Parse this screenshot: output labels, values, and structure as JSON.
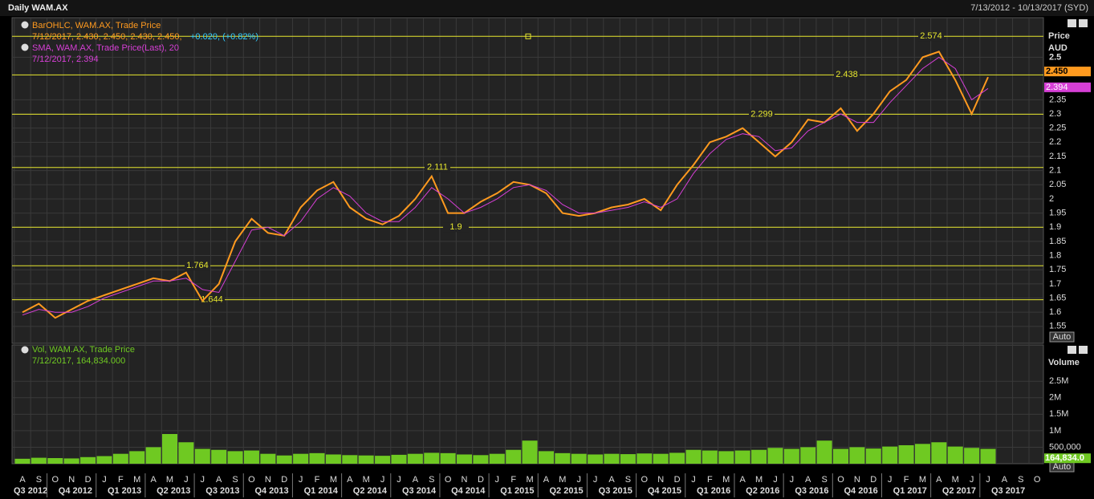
{
  "header": {
    "title": "Daily WAM.AX",
    "range": "7/13/2012 - 10/13/2017 (SYD)"
  },
  "x_axis": {
    "months": [
      "A",
      "S",
      "O",
      "N",
      "D",
      "J",
      "F",
      "M",
      "A",
      "M",
      "J",
      "J",
      "A",
      "S",
      "O",
      "N",
      "D",
      "J",
      "F",
      "M",
      "A",
      "M",
      "J",
      "J",
      "A",
      "S",
      "O",
      "N",
      "D",
      "J",
      "F",
      "M",
      "A",
      "M",
      "J",
      "J",
      "A",
      "S",
      "O",
      "N",
      "D",
      "J",
      "F",
      "M",
      "A",
      "M",
      "J",
      "J",
      "A",
      "S",
      "O",
      "N",
      "D",
      "J",
      "F",
      "M",
      "A",
      "M",
      "J",
      "J",
      "A",
      "S",
      "O"
    ],
    "quarters": [
      "Q3 2012",
      "Q4 2012",
      "Q1 2013",
      "Q2 2013",
      "Q3 2013",
      "Q4 2013",
      "Q1 2014",
      "Q2 2014",
      "Q3 2014",
      "Q4 2014",
      "Q1 2015",
      "Q2 2015",
      "Q3 2015",
      "Q4 2015",
      "Q1 2016",
      "Q2 2016",
      "Q3 2016",
      "Q4 2016",
      "Q1 2017",
      "Q2 2017",
      "Q3 2017"
    ]
  },
  "chart_data": [
    {
      "type": "line",
      "y_axis_title": [
        "Price",
        "AUD"
      ],
      "scale_button": "Auto",
      "series": [
        {
          "name": "BarOHLC, WAM.AX, Trade Price",
          "color": "#ff9a1f",
          "values": [
            1.6,
            1.63,
            1.58,
            1.61,
            1.64,
            1.66,
            1.68,
            1.7,
            1.72,
            1.71,
            1.74,
            1.64,
            1.7,
            1.85,
            1.93,
            1.88,
            1.87,
            1.97,
            2.03,
            2.06,
            1.97,
            1.93,
            1.91,
            1.94,
            2.0,
            2.08,
            1.95,
            1.95,
            1.99,
            2.02,
            2.06,
            2.05,
            2.02,
            1.95,
            1.94,
            1.95,
            1.97,
            1.98,
            2.0,
            1.96,
            2.05,
            2.12,
            2.2,
            2.22,
            2.25,
            2.2,
            2.15,
            2.2,
            2.28,
            2.27,
            2.32,
            2.24,
            2.3,
            2.38,
            2.42,
            2.5,
            2.52,
            2.42,
            2.3,
            2.43,
            null,
            null,
            null
          ]
        },
        {
          "name": "SMA, WAM.AX, Trade Price(Last), 20",
          "color": "#d63fd6",
          "values": [
            1.59,
            1.61,
            1.6,
            1.6,
            1.62,
            1.65,
            1.67,
            1.69,
            1.71,
            1.71,
            1.72,
            1.68,
            1.67,
            1.78,
            1.89,
            1.9,
            1.87,
            1.92,
            2.0,
            2.04,
            2.01,
            1.95,
            1.92,
            1.92,
            1.97,
            2.04,
            2.0,
            1.95,
            1.97,
            2.0,
            2.04,
            2.05,
            2.03,
            1.98,
            1.95,
            1.95,
            1.96,
            1.97,
            1.99,
            1.97,
            2.0,
            2.09,
            2.16,
            2.21,
            2.23,
            2.22,
            2.17,
            2.18,
            2.24,
            2.27,
            2.3,
            2.27,
            2.27,
            2.34,
            2.4,
            2.46,
            2.5,
            2.46,
            2.35,
            2.39,
            null,
            null,
            null
          ]
        }
      ],
      "legend_details": [
        "7/12/2017, 2.430, 2.450, 2.430, 2.450,",
        "+0.020, (+0.82%)",
        "7/12/2017, 2.394"
      ],
      "last_values": [
        {
          "value": 2.45,
          "label": "2.450"
        },
        {
          "value": 2.394,
          "label": "2.394"
        }
      ],
      "levels": [
        2.574,
        2.438,
        2.299,
        2.111,
        1.9,
        1.764,
        1.644
      ],
      "ylim": [
        1.49,
        2.64
      ],
      "yticks": [
        1.55,
        1.6,
        1.65,
        1.7,
        1.75,
        1.8,
        1.85,
        1.9,
        1.95,
        2,
        2.05,
        2.1,
        2.15,
        2.2,
        2.25,
        2.3,
        2.35,
        2.5
      ]
    },
    {
      "type": "bar",
      "y_axis_title": "Volume",
      "scale_button": "Auto",
      "series": [
        {
          "name": "Vol, WAM.AX, Trade Price",
          "color": "#6fc922",
          "values": [
            150000,
            180000,
            170000,
            160000,
            200000,
            230000,
            300000,
            380000,
            500000,
            900000,
            650000,
            450000,
            420000,
            380000,
            400000,
            300000,
            250000,
            300000,
            320000,
            280000,
            260000,
            250000,
            240000,
            270000,
            300000,
            330000,
            320000,
            280000,
            260000,
            300000,
            420000,
            700000,
            380000,
            320000,
            300000,
            280000,
            300000,
            290000,
            310000,
            300000,
            330000,
            420000,
            400000,
            380000,
            400000,
            420000,
            480000,
            450000,
            500000,
            700000,
            450000,
            500000,
            460000,
            520000,
            560000,
            600000,
            650000,
            520000,
            480000,
            450000,
            null,
            null,
            null
          ]
        }
      ],
      "legend_details": [
        "7/12/2017, 164,834.000"
      ],
      "last_value": {
        "value": 164834,
        "label": "164,834.0"
      },
      "ylim": [
        0,
        3600000
      ],
      "yticks": [
        {
          "value": 500000,
          "label": "500,000"
        },
        {
          "value": 1000000,
          "label": "1M"
        },
        {
          "value": 1500000,
          "label": "1.5M"
        },
        {
          "value": 2000000,
          "label": "2M"
        },
        {
          "value": 2500000,
          "label": "2.5M"
        }
      ]
    }
  ]
}
